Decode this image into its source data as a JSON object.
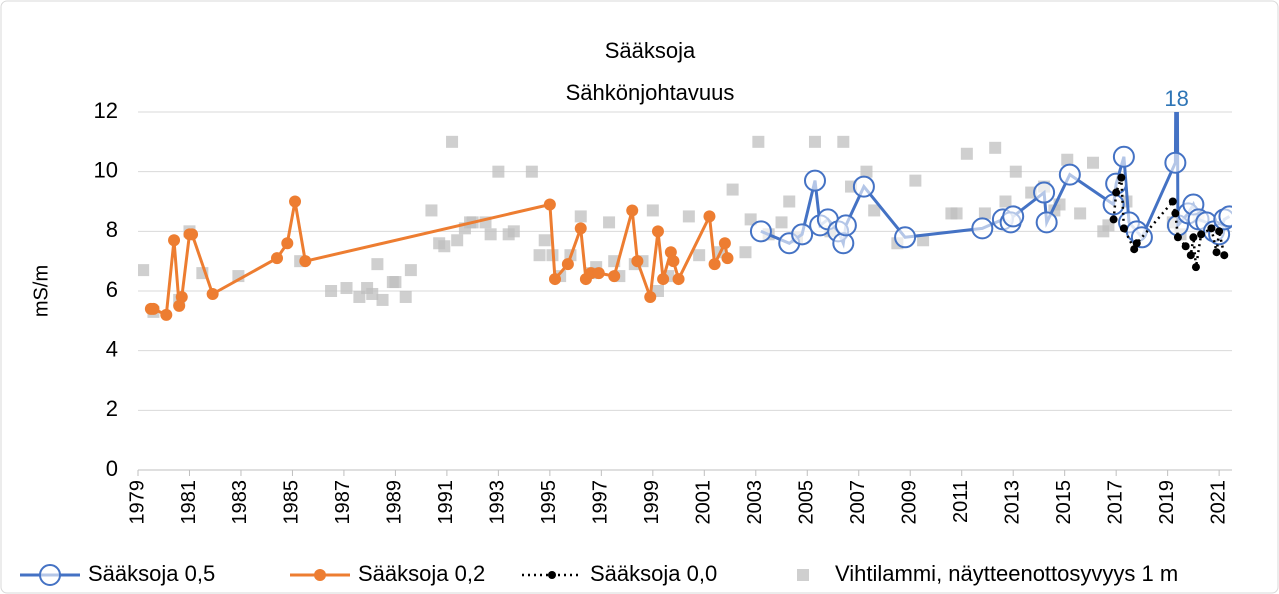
{
  "chart_data": {
    "type": "line",
    "title": "Sääksoja",
    "subtitle": "Sähkönjohtavuus",
    "y_label": "mS/m",
    "xlim": [
      1979,
      2021.5
    ],
    "xticks": [
      1979,
      1981,
      1983,
      1985,
      1987,
      1989,
      1991,
      1993,
      1995,
      1997,
      1999,
      2001,
      2003,
      2005,
      2007,
      2009,
      2011,
      2013,
      2015,
      2017,
      2019,
      2021
    ],
    "ylim": [
      0,
      12
    ],
    "yticks": [
      0,
      2,
      4,
      6,
      8,
      10,
      12
    ],
    "grid": true,
    "legend": "bottom",
    "series": [
      {
        "name": "Vihtilammi, näytteenottosyvyys 1 m",
        "color": "#bfbfbf",
        "marker": "square",
        "line": "none",
        "x": [
          1979.2,
          1979.6,
          1980.6,
          1981.0,
          1981.5,
          1982.9,
          1985.3,
          1986.5,
          1987.1,
          1987.6,
          1987.9,
          1988.1,
          1988.3,
          1988.5,
          1988.9,
          1989.0,
          1989.4,
          1989.6,
          1990.4,
          1990.7,
          1990.9,
          1991.2,
          1991.4,
          1991.7,
          1991.9,
          1992.0,
          1992.5,
          1992.7,
          1993.0,
          1993.4,
          1993.6,
          1994.3,
          1994.6,
          1994.8,
          1995.1,
          1995.4,
          1995.8,
          1996.2,
          1996.6,
          1996.8,
          1997.3,
          1997.5,
          1997.7,
          1998.3,
          1998.6,
          1999.0,
          1999.2,
          1999.6,
          2000.4,
          2000.8,
          2001.6,
          2002.1,
          2002.6,
          2002.8,
          2003.1,
          2003.5,
          2004.0,
          2004.3,
          2004.6,
          2005.3,
          2005.9,
          2006.4,
          2006.7,
          2007.3,
          2007.6,
          2008.5,
          2009.2,
          2009.5,
          2010.6,
          2010.8,
          2011.2,
          2011.9,
          2012.3,
          2012.7,
          2013.1,
          2013.7,
          2014.2,
          2014.6,
          2014.8,
          2015.1,
          2015.6,
          2016.1,
          2016.5,
          2016.7,
          2017.4,
          2019.2,
          2019.5,
          2020.2
        ],
        "values": [
          6.7,
          5.3,
          5.7,
          8.0,
          6.6,
          6.5,
          7.0,
          6.0,
          6.1,
          5.8,
          6.1,
          5.9,
          6.9,
          5.7,
          6.3,
          6.3,
          5.8,
          6.7,
          8.7,
          7.6,
          7.5,
          11.0,
          7.7,
          8.1,
          8.3,
          8.3,
          8.3,
          7.9,
          10.0,
          7.9,
          8.0,
          10.0,
          7.2,
          7.7,
          7.2,
          6.5,
          7.2,
          8.5,
          6.6,
          6.8,
          8.3,
          7.0,
          6.5,
          6.9,
          7.0,
          8.7,
          6.0,
          6.5,
          8.5,
          7.2,
          7.3,
          9.4,
          7.3,
          8.4,
          11.0,
          7.9,
          8.3,
          9.0,
          7.8,
          11.0,
          8.0,
          11.0,
          9.5,
          10.0,
          8.7,
          7.6,
          9.7,
          7.7,
          8.6,
          8.6,
          10.6,
          8.6,
          10.8,
          9.0,
          10.0,
          9.3,
          9.5,
          8.7,
          8.9,
          10.4,
          8.6,
          10.3,
          8.0,
          8.2,
          9.0,
          8.3,
          7.9,
          8.5
        ]
      },
      {
        "name": "Sääksoja 0,2",
        "color": "#ed7d31",
        "marker": "circle",
        "line": "solid",
        "x": [
          1979.5,
          1979.6,
          1980.1,
          1980.4,
          1980.6,
          1980.7,
          1981.0,
          1981.1,
          1981.9,
          1984.4,
          1984.8,
          1985.1,
          1985.5,
          1995.0,
          1995.2,
          1995.7,
          1996.2,
          1996.4,
          1996.6,
          1996.9,
          1997.5,
          1998.2,
          1998.4,
          1998.9,
          1999.2,
          1999.4,
          1999.7,
          1999.8,
          2000.0,
          2001.2,
          2001.4,
          2001.8,
          2001.9
        ],
        "values": [
          5.4,
          5.4,
          5.2,
          7.7,
          5.5,
          5.8,
          7.9,
          7.9,
          5.9,
          7.1,
          7.6,
          9.0,
          7.0,
          8.9,
          6.4,
          6.9,
          8.1,
          6.4,
          6.6,
          6.6,
          6.5,
          8.7,
          7.0,
          5.8,
          8.0,
          6.4,
          7.3,
          7.0,
          6.4,
          8.5,
          6.9,
          7.6,
          7.1
        ]
      },
      {
        "name": "Sääksoja 0,5",
        "color": "#4472c4",
        "marker": "open-circle",
        "line": "solid",
        "x": [
          2003.2,
          2004.3,
          2004.8,
          2005.3,
          2005.5,
          2005.8,
          2006.2,
          2006.4,
          2006.5,
          2007.2,
          2008.8,
          2011.8,
          2012.6,
          2012.9,
          2013.0,
          2014.2,
          2014.3,
          2015.2,
          2016.9,
          2017.0,
          2017.3,
          2017.5,
          2017.8,
          2018.0,
          2019.3,
          2019.35,
          2019.4,
          2019.8,
          2020.0,
          2020.2,
          2020.5,
          2020.8,
          2021.0,
          2021.2,
          2021.4
        ],
        "values": [
          8.0,
          7.6,
          7.9,
          9.7,
          8.2,
          8.4,
          8.0,
          7.6,
          8.2,
          9.5,
          7.8,
          8.1,
          8.4,
          8.3,
          8.5,
          9.3,
          8.3,
          9.9,
          8.9,
          9.6,
          10.5,
          8.3,
          8.0,
          7.8,
          10.3,
          18,
          8.2,
          8.6,
          8.9,
          8.4,
          8.3,
          8.0,
          7.9,
          8.4,
          8.5
        ]
      },
      {
        "name": "Sääksoja 0,0",
        "color": "#000000",
        "marker": "dot",
        "line": "dotted",
        "x": [
          2016.9,
          2017.0,
          2017.2,
          2017.3,
          2017.7,
          2017.8,
          2019.2,
          2019.3,
          2019.4,
          2019.7,
          2019.9,
          2020.0,
          2020.1,
          2020.3,
          2020.7,
          2020.9,
          2021.0,
          2021.2
        ],
        "values": [
          8.4,
          9.3,
          9.8,
          8.1,
          7.4,
          7.6,
          9.0,
          8.6,
          7.8,
          7.5,
          7.2,
          7.8,
          6.8,
          7.9,
          8.1,
          7.3,
          8.0,
          7.2
        ]
      }
    ],
    "legend_order": [
      2,
      1,
      3,
      0
    ],
    "labeled_points": [
      {
        "series": 2,
        "index": 25,
        "color": "#2e75b6"
      }
    ]
  }
}
